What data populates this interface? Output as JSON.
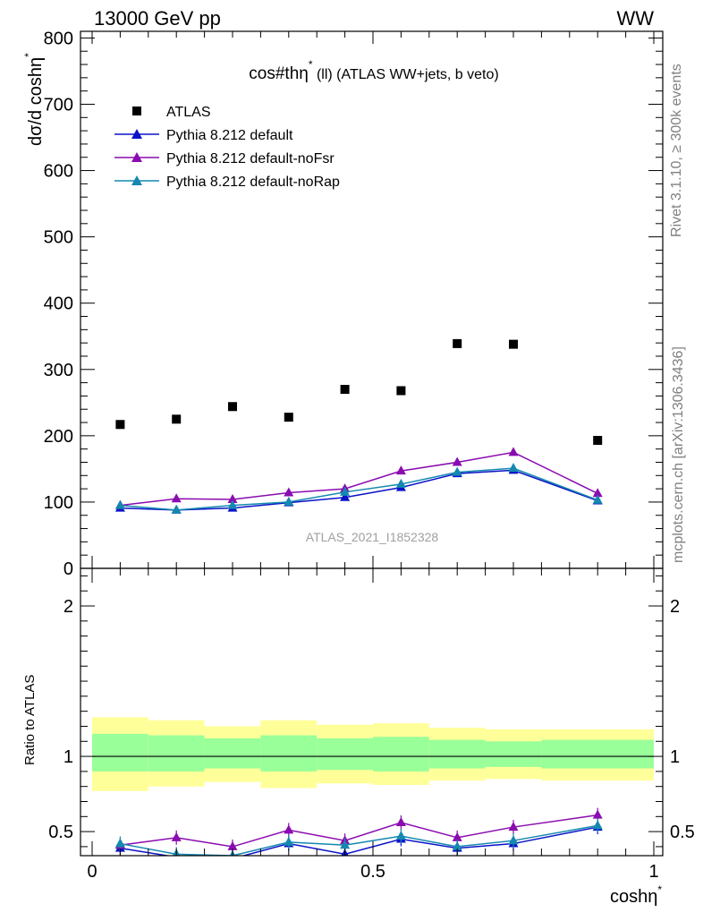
{
  "header": {
    "collision": "13000 GeV pp",
    "process": "WW"
  },
  "side_labels": {
    "generator": "Rivet 3.1.10, ≥ 300k events",
    "source": "mcplots.cern.ch [arXiv:1306.3436]"
  },
  "watermark": "ATLAS_2021_I1852328",
  "colors": {
    "data": "#000000",
    "default": "#0a12c8",
    "noFsr": "#8a0cb0",
    "noRap": "#1488b0",
    "band_inner": "#99ff99",
    "band_outer": "#ffff99"
  },
  "chart_data": [
    {
      "type": "scatter",
      "title": "cos#thη* (ll) (ATLAS WW+jets, b veto)",
      "title_parts": {
        "main": "cos#thη",
        "sup": "*",
        "rest": " (ll) (ATLAS WW+jets, b veto)"
      },
      "ylabel": "dσ/d coshη*",
      "ylabel_parts": {
        "main": "dσ/d coshη",
        "sup": "*"
      },
      "xlim": [
        0,
        1
      ],
      "ylim": [
        0,
        810
      ],
      "yticks": [
        0,
        100,
        200,
        300,
        400,
        500,
        600,
        700,
        800
      ],
      "ytick_labels": [
        "0",
        "100",
        "200",
        "300",
        "400",
        "500",
        "600",
        "700",
        "800"
      ],
      "x": [
        0.05,
        0.15,
        0.25,
        0.35,
        0.45,
        0.55,
        0.65,
        0.75,
        0.9
      ],
      "series": [
        {
          "name": "ATLAS",
          "key": "data",
          "marker": "square",
          "values": [
            217,
            225,
            244,
            228,
            270,
            268,
            339,
            338,
            193
          ]
        },
        {
          "name": "Pythia 8.212 default",
          "key": "default",
          "marker": "triangle",
          "values": [
            91,
            88,
            91,
            99,
            107,
            122,
            143,
            148,
            102
          ]
        },
        {
          "name": "Pythia 8.212 default-noFsr",
          "key": "noFsr",
          "marker": "triangle",
          "values": [
            95,
            105,
            104,
            114,
            120,
            147,
            160,
            175,
            113
          ]
        },
        {
          "name": "Pythia 8.212 default-noRap",
          "key": "noRap",
          "marker": "triangle",
          "values": [
            95,
            88,
            95,
            100,
            115,
            127,
            145,
            151,
            103
          ]
        }
      ],
      "legend_position": "top-left"
    },
    {
      "type": "line",
      "ylabel": "Ratio to ATLAS",
      "xlabel": "coshη*",
      "xlabel_parts": {
        "main": "coshη",
        "sup": "*"
      },
      "xlim": [
        0,
        1
      ],
      "ylim": [
        0.34,
        2.25
      ],
      "xticks": [
        0,
        0.5,
        1
      ],
      "xtick_labels": [
        "0",
        "0.5",
        "1"
      ],
      "yticks": [
        0.5,
        1,
        2
      ],
      "ytick_labels": [
        "0.5",
        "1",
        "2"
      ],
      "bins": [
        {
          "lo": 0.0,
          "hi": 0.1,
          "inner": [
            0.9,
            1.15
          ],
          "outer": [
            0.77,
            1.26
          ]
        },
        {
          "lo": 0.1,
          "hi": 0.2,
          "inner": [
            0.9,
            1.14
          ],
          "outer": [
            0.8,
            1.24
          ]
        },
        {
          "lo": 0.2,
          "hi": 0.3,
          "inner": [
            0.92,
            1.12
          ],
          "outer": [
            0.83,
            1.2
          ]
        },
        {
          "lo": 0.3,
          "hi": 0.4,
          "inner": [
            0.9,
            1.14
          ],
          "outer": [
            0.79,
            1.24
          ]
        },
        {
          "lo": 0.4,
          "hi": 0.5,
          "inner": [
            0.91,
            1.12
          ],
          "outer": [
            0.82,
            1.21
          ]
        },
        {
          "lo": 0.5,
          "hi": 0.6,
          "inner": [
            0.9,
            1.13
          ],
          "outer": [
            0.81,
            1.22
          ]
        },
        {
          "lo": 0.6,
          "hi": 0.7,
          "inner": [
            0.92,
            1.11
          ],
          "outer": [
            0.84,
            1.19
          ]
        },
        {
          "lo": 0.7,
          "hi": 0.8,
          "inner": [
            0.93,
            1.1
          ],
          "outer": [
            0.85,
            1.18
          ]
        },
        {
          "lo": 0.8,
          "hi": 1.0,
          "inner": [
            0.92,
            1.11
          ],
          "outer": [
            0.84,
            1.18
          ]
        }
      ],
      "x": [
        0.05,
        0.15,
        0.25,
        0.35,
        0.45,
        0.55,
        0.65,
        0.75,
        0.9
      ],
      "series": [
        {
          "name": "Pythia 8.212 default",
          "key": "default",
          "values": [
            0.39,
            0.33,
            0.32,
            0.42,
            0.35,
            0.45,
            0.39,
            0.42,
            0.53
          ]
        },
        {
          "name": "Pythia 8.212 default-noFsr",
          "key": "noFsr",
          "values": [
            0.41,
            0.46,
            0.4,
            0.51,
            0.44,
            0.56,
            0.46,
            0.53,
            0.61
          ]
        },
        {
          "name": "Pythia 8.212 default-noRap",
          "key": "noRap",
          "values": [
            0.42,
            0.35,
            0.34,
            0.43,
            0.41,
            0.47,
            0.4,
            0.44,
            0.54
          ]
        }
      ]
    }
  ]
}
